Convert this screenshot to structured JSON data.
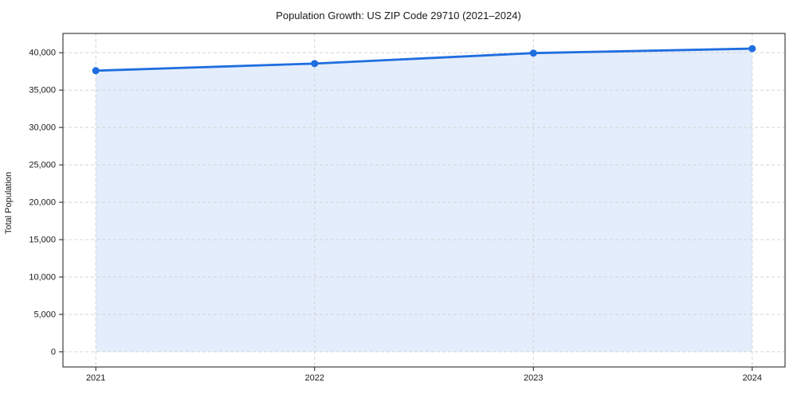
{
  "title": "Population Growth: US ZIP Code 29710 (2021–2024)",
  "chart_data": {
    "type": "area",
    "title": "Population Growth: US ZIP Code 29710 (2021–2024)",
    "xlabel": "",
    "ylabel": "Total Population",
    "x": [
      2021,
      2022,
      2023,
      2024
    ],
    "series": [
      {
        "name": "Total Population",
        "values": [
          37600,
          38550,
          39950,
          40550
        ]
      }
    ],
    "xlim": [
      2020.85,
      2024.15
    ],
    "ylim": [
      -2030,
      42580
    ],
    "xticks": [
      2021,
      2022,
      2023,
      2024
    ],
    "xtick_labels": [
      "2021",
      "2022",
      "2023",
      "2024"
    ],
    "yticks": [
      0,
      5000,
      10000,
      15000,
      20000,
      25000,
      30000,
      35000,
      40000
    ],
    "ytick_labels": [
      "0",
      "5,000",
      "10,000",
      "15,000",
      "20,000",
      "25,000",
      "30,000",
      "35,000",
      "40,000"
    ],
    "grid": true,
    "legend": "none",
    "colors": {
      "line": "#1f6ee0",
      "marker": "#1f6ee0",
      "fill": "rgba(31,110,224,0.12)",
      "gridline": "#d4d4d4",
      "spine": "#1a1a1a",
      "tick": "#1a1a1a",
      "background": "#ffffff"
    }
  }
}
